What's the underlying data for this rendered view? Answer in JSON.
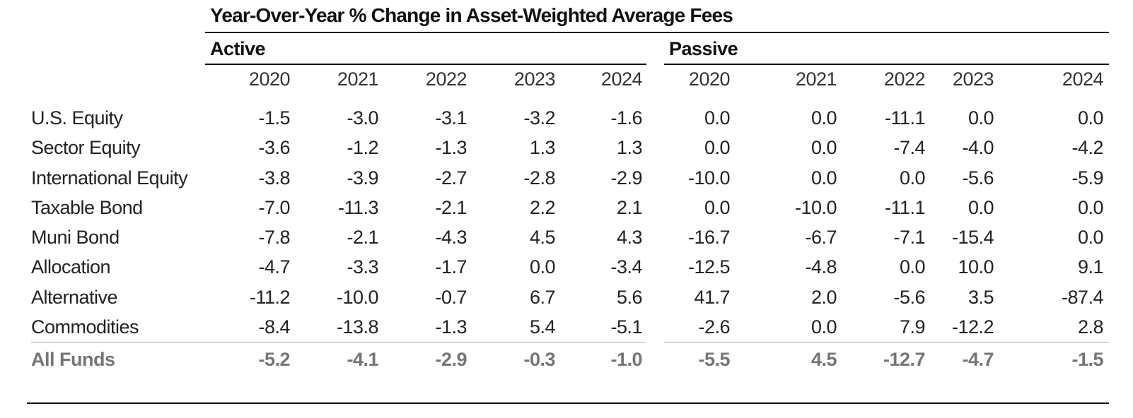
{
  "chart_data": {
    "type": "table",
    "title": "Year-Over-Year % Change in Asset-Weighted Average Fees",
    "groups": [
      "Active",
      "Passive"
    ],
    "years": [
      "2020",
      "2021",
      "2022",
      "2023",
      "2024"
    ],
    "rows": [
      {
        "label": "U.S. Equity",
        "active": [
          "-1.5",
          "-3.0",
          "-3.1",
          "-3.2",
          "-1.6"
        ],
        "passive": [
          "0.0",
          "0.0",
          "-11.1",
          "0.0",
          "0.0"
        ]
      },
      {
        "label": "Sector Equity",
        "active": [
          "-3.6",
          "-1.2",
          "-1.3",
          "1.3",
          "1.3"
        ],
        "passive": [
          "0.0",
          "0.0",
          "-7.4",
          "-4.0",
          "-4.2"
        ]
      },
      {
        "label": "International Equity",
        "active": [
          "-3.8",
          "-3.9",
          "-2.7",
          "-2.8",
          "-2.9"
        ],
        "passive": [
          "-10.0",
          "0.0",
          "0.0",
          "-5.6",
          "-5.9"
        ]
      },
      {
        "label": "Taxable Bond",
        "active": [
          "-7.0",
          "-11.3",
          "-2.1",
          "2.2",
          "2.1"
        ],
        "passive": [
          "0.0",
          "-10.0",
          "-11.1",
          "0.0",
          "0.0"
        ]
      },
      {
        "label": "Muni Bond",
        "active": [
          "-7.8",
          "-2.1",
          "-4.3",
          "4.5",
          "4.3"
        ],
        "passive": [
          "-16.7",
          "-6.7",
          "-7.1",
          "-15.4",
          "0.0"
        ]
      },
      {
        "label": "Allocation",
        "active": [
          "-4.7",
          "-3.3",
          "-1.7",
          "0.0",
          "-3.4"
        ],
        "passive": [
          "-12.5",
          "-4.8",
          "0.0",
          "10.0",
          "9.1"
        ]
      },
      {
        "label": "Alternative",
        "active": [
          "-11.2",
          "-10.0",
          "-0.7",
          "6.7",
          "5.6"
        ],
        "passive": [
          "41.7",
          "2.0",
          "-5.6",
          "3.5",
          "-87.4"
        ]
      },
      {
        "label": "Commodities",
        "active": [
          "-8.4",
          "-13.8",
          "-1.3",
          "5.4",
          "-5.1"
        ],
        "passive": [
          "-2.6",
          "0.0",
          "7.9",
          "-12.2",
          "2.8"
        ]
      }
    ],
    "total": {
      "label": "All Funds",
      "active": [
        "-5.2",
        "-4.1",
        "-2.9",
        "-0.3",
        "-1.0"
      ],
      "passive": [
        "-5.5",
        "4.5",
        "-12.7",
        "-4.7",
        "-1.5"
      ]
    }
  }
}
